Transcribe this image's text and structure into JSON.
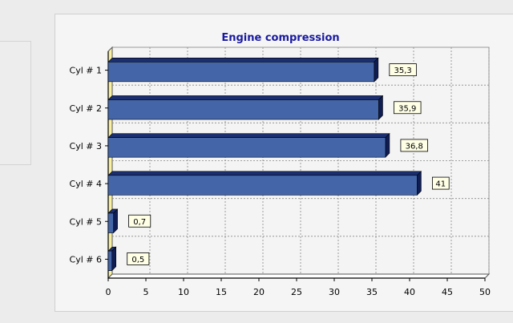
{
  "chart_data": {
    "type": "bar",
    "orientation": "horizontal",
    "title": "Engine compression",
    "categories": [
      "Cyl # 1",
      "Cyl # 2",
      "Cyl # 3",
      "Cyl # 4",
      "Cyl # 5",
      "Cyl # 6"
    ],
    "values": [
      35.3,
      35.9,
      36.8,
      41,
      0.7,
      0.5
    ],
    "value_labels": [
      "35,3",
      "35,9",
      "36,8",
      "41",
      "0,7",
      "0,5"
    ],
    "xlim": [
      0,
      50
    ],
    "xticks": [
      0,
      5,
      10,
      15,
      20,
      25,
      30,
      35,
      40,
      45,
      50
    ],
    "grid": true,
    "legend": "none",
    "colors": {
      "bar_front": "#4466a8",
      "bar_top": "#1a2e70",
      "bar_side": "#0f1d55",
      "wall": "#f8f0a0",
      "title": "#1a1aa0"
    }
  }
}
